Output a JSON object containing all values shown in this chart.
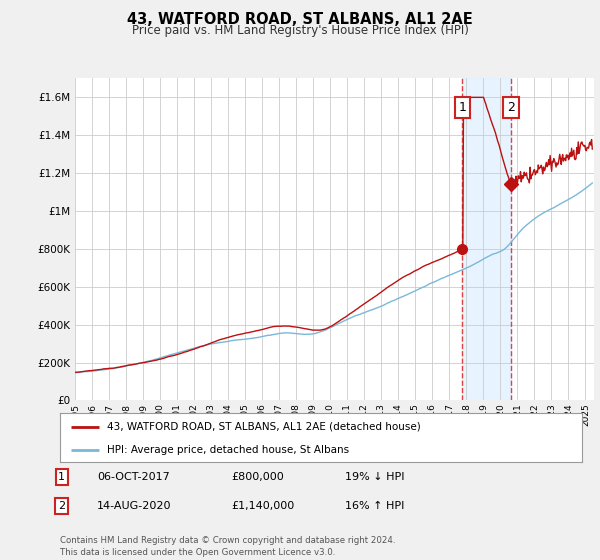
{
  "title": "43, WATFORD ROAD, ST ALBANS, AL1 2AE",
  "subtitle": "Price paid vs. HM Land Registry's House Price Index (HPI)",
  "ylabel_ticks": [
    "£0",
    "£200K",
    "£400K",
    "£600K",
    "£800K",
    "£1M",
    "£1.2M",
    "£1.4M",
    "£1.6M"
  ],
  "ytick_values": [
    0,
    200000,
    400000,
    600000,
    800000,
    1000000,
    1200000,
    1400000,
    1600000
  ],
  "ylim": [
    0,
    1700000
  ],
  "xlim_start": 1995.0,
  "xlim_end": 2025.5,
  "hpi_color": "#7ab8d9",
  "price_color": "#bb1111",
  "marker1_date": 2017.77,
  "marker1_price": 800000,
  "marker1_label": "1",
  "marker2_date": 2020.62,
  "marker2_price": 1140000,
  "marker2_label": "2",
  "vline_color": "#dd4444",
  "span_color": "#ddeeff",
  "legend_line1": "43, WATFORD ROAD, ST ALBANS, AL1 2AE (detached house)",
  "legend_line2": "HPI: Average price, detached house, St Albans",
  "table_row1": [
    "1",
    "06-OCT-2017",
    "£800,000",
    "19% ↓ HPI"
  ],
  "table_row2": [
    "2",
    "14-AUG-2020",
    "£1,140,000",
    "16% ↑ HPI"
  ],
  "footnote": "Contains HM Land Registry data © Crown copyright and database right 2024.\nThis data is licensed under the Open Government Licence v3.0.",
  "background_color": "#f0f0f0",
  "plot_bg_color": "#ffffff",
  "grid_color": "#cccccc"
}
